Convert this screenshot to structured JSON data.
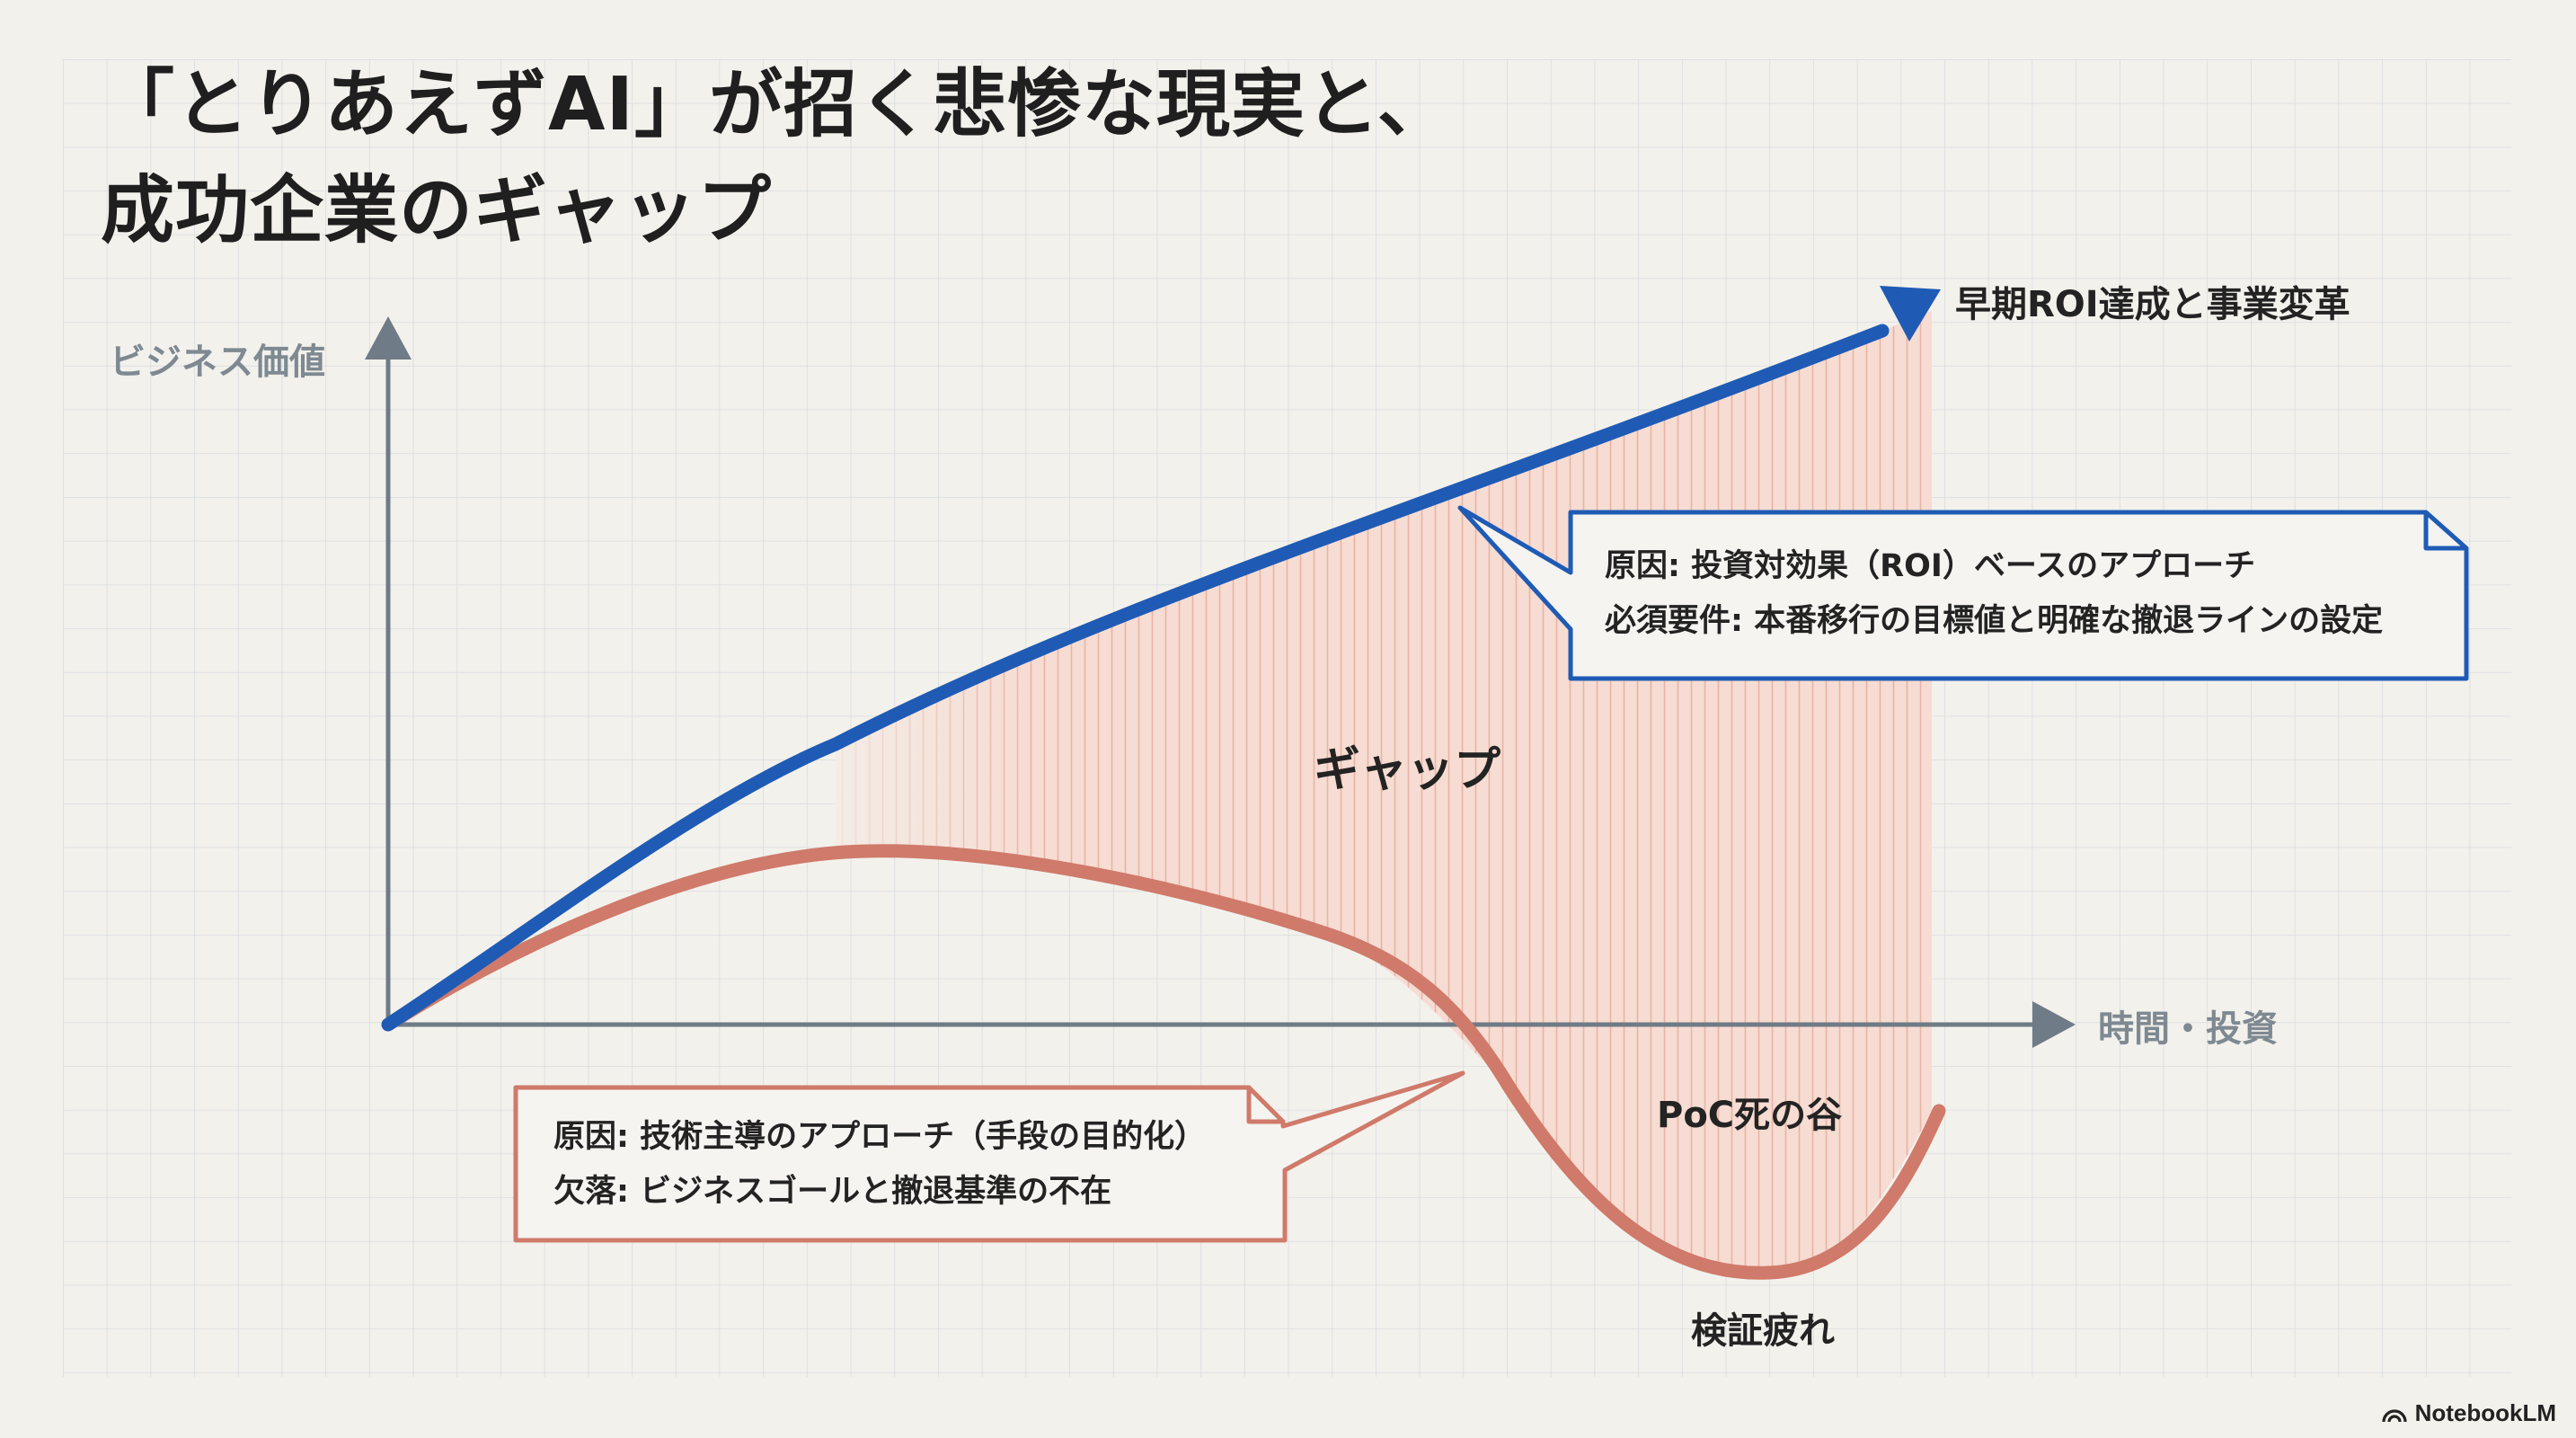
{
  "title": {
    "line1": "「とりあえずAI」が招く悲惨な現実と、",
    "line2": "成功企業のギャップ"
  },
  "axes": {
    "y_label": "ビジネス価値",
    "x_label": "時間・投資"
  },
  "series": {
    "success": {
      "end_label": "早期ROI達成と事業変革",
      "color": "#1f5bb5"
    },
    "failure": {
      "color": "#cf7a6a"
    }
  },
  "annotations": {
    "gap": "ギャップ",
    "valley": "PoC死の谷",
    "fatigue": "検証疲れ"
  },
  "callouts": {
    "success": {
      "line1": "原因: 投資対効果（ROI）ベースのアプローチ",
      "line2": "必須要件: 本番移行の目標値と明確な撤退ラインの設定",
      "border_color": "#1f5bb5"
    },
    "failure": {
      "line1": "原因: 技術主導のアプローチ（手段の目的化）",
      "line2": "欠落: ビジネスゴールと撤退基準の不在",
      "border_color": "#cf7a6a"
    }
  },
  "colors": {
    "background": "#f3f1ec",
    "grid": "#d8dcdf",
    "axis": "#6f7b86",
    "gap_fill": "#f4c9bd"
  },
  "brand": {
    "name": "NotebookLM"
  }
}
